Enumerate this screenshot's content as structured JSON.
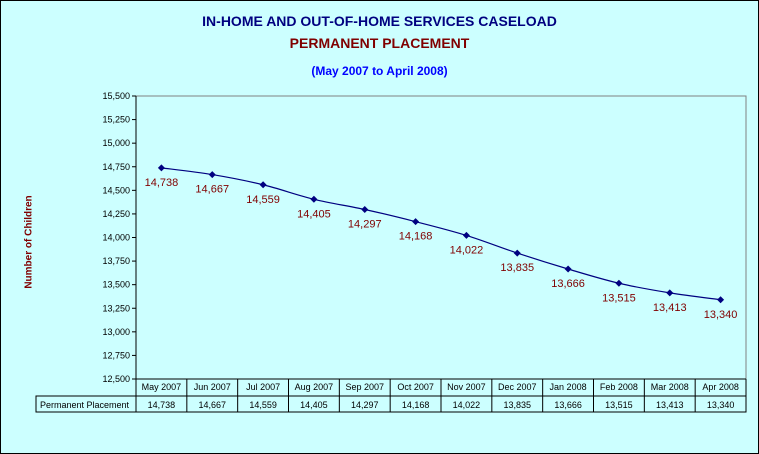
{
  "chart_data": {
    "type": "line",
    "title": "IN-HOME AND OUT-OF-HOME SERVICES CASELOAD",
    "subtitle": "PERMANENT PLACEMENT",
    "subtitle2": "(May 2007 to April 2008)",
    "ylabel": "Number of Children",
    "ylim": [
      12500,
      15500
    ],
    "ytick_step": 250,
    "yticks": [
      "12,500",
      "12,750",
      "13,000",
      "13,250",
      "13,500",
      "13,750",
      "14,000",
      "14,250",
      "14,500",
      "14,750",
      "15,000",
      "15,250",
      "15,500"
    ],
    "grid": false,
    "categories": [
      "May 2007",
      "Jun 2007",
      "Jul 2007",
      "Aug 2007",
      "Sep 2007",
      "Oct 2007",
      "Nov 2007",
      "Dec 2007",
      "Jan 2008",
      "Feb 2008",
      "Mar 2008",
      "Apr 2008"
    ],
    "series": [
      {
        "name": "Permanent Placement",
        "values": [
          14738,
          14667,
          14559,
          14405,
          14297,
          14168,
          14022,
          13835,
          13666,
          13515,
          13413,
          13340
        ],
        "labels": [
          "14,738",
          "14,667",
          "14,559",
          "14,405",
          "14,297",
          "14,168",
          "14,022",
          "13,835",
          "13,666",
          "13,515",
          "13,413",
          "13,340"
        ],
        "color": "#000080",
        "label_color": "#800000"
      }
    ],
    "data_table": true
  },
  "colors": {
    "background": "#ccffff",
    "plot_area": "#ccffff",
    "title": "#000080",
    "subtitle": "#800000",
    "subtitle2": "#0000ff"
  }
}
